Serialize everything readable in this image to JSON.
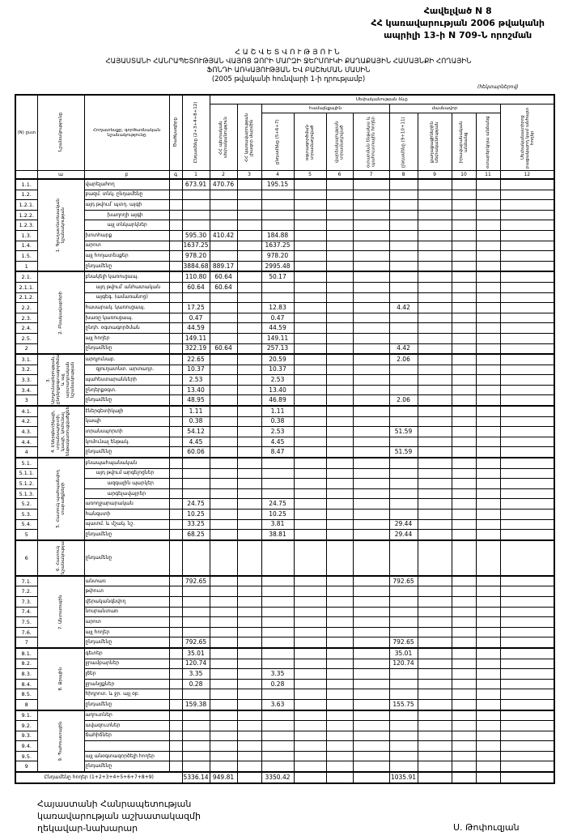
{
  "header": {
    "line1": "Հավելված N 8",
    "line2": "ՀՀ կառավարության 2006 թվականի",
    "line3": "ապրիլի 13-ի N 709-Ն որոշման"
  },
  "title": {
    "t1": "ՀԱՇՎԵՏՎՈՒԹՅՈՒՆ",
    "t2": "ՀԱՅԱՍՏԱՆԻ ՀԱՆՐԱՊԵՏՈՒԹՅԱՆ ՎԱՅՈՑ ՁՈՐԻ ՄԱՐԶԻ ՋԵՐՄՈՒԿԻ ՔԱՂԱՔԱՅԻՆ ՀԱՄԱՅՆՔԻ ՀՈՂԱՅԻՆ",
    "t3": "ՖՈՆԴԻ ԱՌԿԱՅՈՒԹՅԱՆ ԵՎ ԲԱՇԽՄԱՆ ՄԱՍԻՆ",
    "t4": "(2005 թվականի հունվարի 1-ի դրությամբ)",
    "unit": "(հեկտարներով)"
  },
  "columns": {
    "no": "(N) ըստ",
    "category": "Նշանակությունը",
    "type": "Հողատեսքը, գործառնական նշանակությունը",
    "code": "Ծածկագիրը",
    "c1": "Ընդամենը (2+3+4+8+12)",
    "ownership": "Սեփականության ձևը",
    "c2": "ՀՀ պետական սեփականություն",
    "c3": "ՀՀ կառավարության լիազոր մարմին",
    "community": "համայնքային",
    "c4": "ընդամենը (5+6+7)",
    "c5": "օգտագործման տրամադրված",
    "c6": "վարձակալության տրամադրված",
    "c7": "օտարման ենթակա և պահուստային հողեր",
    "private": "մասնավոր",
    "c8": "ընդամենը (9+10+11)",
    "c9": "քաղաքացիներին սեփականության",
    "c10": "իրավաբանական անձանց",
    "c11": "օտարերկրյա անձանց",
    "c12": "Սեփականատիրոջ բացակայող կամ անհայտ հողեր",
    "index": [
      "",
      "ա",
      "բ",
      "գ",
      "1",
      "2",
      "3",
      "4",
      "5",
      "6",
      "7",
      "8",
      "9",
      "10",
      "11",
      "12"
    ]
  },
  "groups": [
    {
      "label": "1. Գյուղատնտեսական նշանակության",
      "rows": [
        {
          "no": "1.1.",
          "type": "վարելահող",
          "v": {
            "1": "673.91",
            "2": "470.76",
            "4": "195.15"
          }
        },
        {
          "no": "1.2.",
          "type": "բազմ. տնկ. ընդամենը",
          "v": {}
        },
        {
          "no": "1.2.1.",
          "type": "այդ թվում՝ պտղ. այգի",
          "v": {}
        },
        {
          "no": "1.2.2.",
          "type": "խաղողի այգի",
          "ind": 2,
          "v": {}
        },
        {
          "no": "1.2.3.",
          "type": "այլ տնկարկներ",
          "ind": 2,
          "v": {}
        },
        {
          "no": "1.3.",
          "type": "խոտհարք",
          "v": {
            "1": "595.30",
            "2": "410.42",
            "4": "184.88"
          }
        },
        {
          "no": "1.4.",
          "type": "արոտ",
          "v": {
            "1": "1637.25",
            "4": "1637.25"
          }
        },
        {
          "no": "1.5.",
          "type": "այլ հողատեսքեր",
          "v": {
            "1": "978.20",
            "4": "978.20"
          }
        },
        {
          "no": "1",
          "type": "ընդամենը",
          "v": {
            "1": "3884.68",
            "2": "889.17",
            "4": "2995.48"
          }
        }
      ]
    },
    {
      "label": "2. Բնակավայրերի",
      "rows": [
        {
          "no": "2.1.",
          "type": "բնակելի կառուցապ.",
          "v": {
            "1": "110.80",
            "2": "60.64",
            "4": "50.17"
          }
        },
        {
          "no": "2.1.1.",
          "type": "այդ թվում՝ անհատական",
          "ind": 1,
          "v": {
            "1": "60.64",
            "2": "60.64"
          }
        },
        {
          "no": "2.1.2.",
          "type": "այգեգ. (ամառանոց)",
          "ind": 1,
          "v": {}
        },
        {
          "no": "2.2.",
          "type": "հասարակ. կառուցապ.",
          "v": {
            "1": "17.25",
            "4": "12.83",
            "8": "4.42"
          }
        },
        {
          "no": "2.3.",
          "type": "խառը կառուցապ.",
          "v": {
            "1": "0.47",
            "4": "0.47"
          }
        },
        {
          "no": "2.4.",
          "type": "ընդհ. օգտագործման",
          "v": {
            "1": "44.59",
            "4": "44.59"
          }
        },
        {
          "no": "2.5.",
          "type": "այլ հողեր",
          "v": {
            "1": "149.11",
            "4": "149.11"
          }
        },
        {
          "no": "2",
          "type": "ընդամենը",
          "v": {
            "1": "322.19",
            "2": "60.64",
            "4": "257.13",
            "8": "4.42"
          }
        }
      ]
    },
    {
      "label": "3. Արդյունաբերության, ընդերքօգտագործման և այլ արտադրական նշանակության",
      "rows": [
        {
          "no": "3.1.",
          "type": "արդյունաբ.",
          "v": {
            "1": "22.65",
            "4": "20.59",
            "8": "2.06"
          }
        },
        {
          "no": "3.2.",
          "type": "գյուղատնտ. արտադր.",
          "ind": 1,
          "v": {
            "1": "10.37",
            "4": "10.37"
          }
        },
        {
          "no": "3.3.",
          "type": "պահեստարանների",
          "v": {
            "1": "2.53",
            "4": "2.53"
          }
        },
        {
          "no": "3.4.",
          "type": "ընդերքօգտ.",
          "v": {
            "1": "13.40",
            "4": "13.40"
          }
        },
        {
          "no": "3",
          "type": "ընդամենը",
          "v": {
            "1": "48.95",
            "4": "46.89",
            "8": "2.06"
          }
        }
      ]
    },
    {
      "label": "4. Էներգետիկայի, տրանսպորտի, կապի, կոմունալ ենթակառուցվածքների",
      "rows": [
        {
          "no": "4.1.",
          "type": "էներգետիկայի",
          "v": {
            "1": "1.11",
            "4": "1.11"
          }
        },
        {
          "no": "4.2.",
          "type": "կապի",
          "v": {
            "1": "0.38",
            "4": "0.38"
          }
        },
        {
          "no": "4.3.",
          "type": "տրանսպորտի",
          "v": {
            "1": "54.12",
            "4": "2.53",
            "8": "51.59"
          }
        },
        {
          "no": "4.4.",
          "type": "կոմունալ ենթակ.",
          "v": {
            "1": "4.45",
            "4": "4.45"
          }
        },
        {
          "no": "4",
          "type": "ընդամենը",
          "v": {
            "1": "60.06",
            "4": "8.47",
            "8": "51.59"
          }
        }
      ]
    },
    {
      "label": "5. Հատուկ պահպանվող տարածքների",
      "rows": [
        {
          "no": "5.1.",
          "type": "բնապահպանական",
          "v": {}
        },
        {
          "no": "5.1.1.",
          "type": "այդ թվում արգելոցներ",
          "ind": 1,
          "v": {}
        },
        {
          "no": "5.1.2.",
          "type": "ազգային պարկեր",
          "ind": 2,
          "v": {}
        },
        {
          "no": "5.1.3.",
          "type": "արգելավայրեր",
          "ind": 2,
          "v": {}
        },
        {
          "no": "5.2.",
          "type": "առողջարարական",
          "v": {
            "1": "24.75",
            "4": "24.75"
          }
        },
        {
          "no": "5.3.",
          "type": "հանգստի",
          "v": {
            "1": "10.25",
            "4": "10.25"
          }
        },
        {
          "no": "5.4.",
          "type": "պատմ. և մշակ. նշ.",
          "v": {
            "1": "33.25",
            "4": "3.81",
            "8": "29.44"
          }
        },
        {
          "no": "5",
          "type": "ընդամենը",
          "v": {
            "1": "68.25",
            "4": "38.81",
            "8": "29.44"
          }
        }
      ]
    },
    {
      "label": "6. Հատուկ նշանակության",
      "tall": true,
      "rows": [
        {
          "no": "6",
          "type": "ընդամենը",
          "v": {}
        }
      ]
    },
    {
      "label": "7. Անտառային",
      "rows": [
        {
          "no": "7.1.",
          "type": "անտառ",
          "v": {
            "1": "792.65",
            "8": "792.65"
          }
        },
        {
          "no": "7.2.",
          "type": "թփուտ",
          "v": {}
        },
        {
          "no": "7.3.",
          "type": "վերականգնվող",
          "v": {}
        },
        {
          "no": "7.4.",
          "type": "նոսրանտառ",
          "v": {}
        },
        {
          "no": "7.5.",
          "type": "արոտ",
          "v": {}
        },
        {
          "no": "7.6.",
          "type": "այլ հողեր",
          "v": {}
        },
        {
          "no": "7",
          "type": "ընդամենը",
          "v": {
            "1": "792.65",
            "8": "792.65"
          }
        }
      ]
    },
    {
      "label": "8. Ջրային",
      "rows": [
        {
          "no": "8.1.",
          "type": "գետեր",
          "v": {
            "1": "35.01",
            "8": "35.01"
          }
        },
        {
          "no": "8.2.",
          "type": "ջրամբարներ",
          "v": {
            "1": "120.74",
            "8": "120.74"
          }
        },
        {
          "no": "8.3.",
          "type": "լճեր",
          "v": {
            "1": "3.35",
            "4": "3.35"
          }
        },
        {
          "no": "8.4.",
          "type": "ջրանցքներ",
          "v": {
            "1": "0.28",
            "4": "0.28"
          }
        },
        {
          "no": "8.5.",
          "type": "հիդրոտ. և ջր. այլ օբ.",
          "v": {}
        },
        {
          "no": "8",
          "type": "ընդամենը",
          "v": {
            "1": "159.38",
            "4": "3.63",
            "8": "155.75"
          }
        }
      ]
    },
    {
      "label": "9. Պահուստային",
      "rows": [
        {
          "no": "9.1.",
          "type": "աղուտներ",
          "v": {}
        },
        {
          "no": "9.2.",
          "type": "ավազուտներ",
          "v": {}
        },
        {
          "no": "9.3.",
          "type": "ճահիճներ",
          "v": {}
        },
        {
          "no": "9.4.",
          "type": "",
          "v": {}
        },
        {
          "no": "9.5.",
          "type": "այլ անօգտագործելի հողեր",
          "v": {}
        },
        {
          "no": "9",
          "type": "ընդամենը",
          "v": {}
        }
      ]
    }
  ],
  "total": {
    "label": "Ընդամենը հողեր (1+2+3+4+5+6+7+8+9)",
    "v": {
      "1": "5336.14",
      "2": "949.81",
      "4": "3350.42",
      "8": "1035.91"
    }
  },
  "footer": {
    "l1": "Հայաստանի Հանրապետության",
    "l2": "կառավարության աշխատակազմի",
    "l3": "ղեկավար-նախարար",
    "signer": "Ս. Թոփուզյան"
  }
}
